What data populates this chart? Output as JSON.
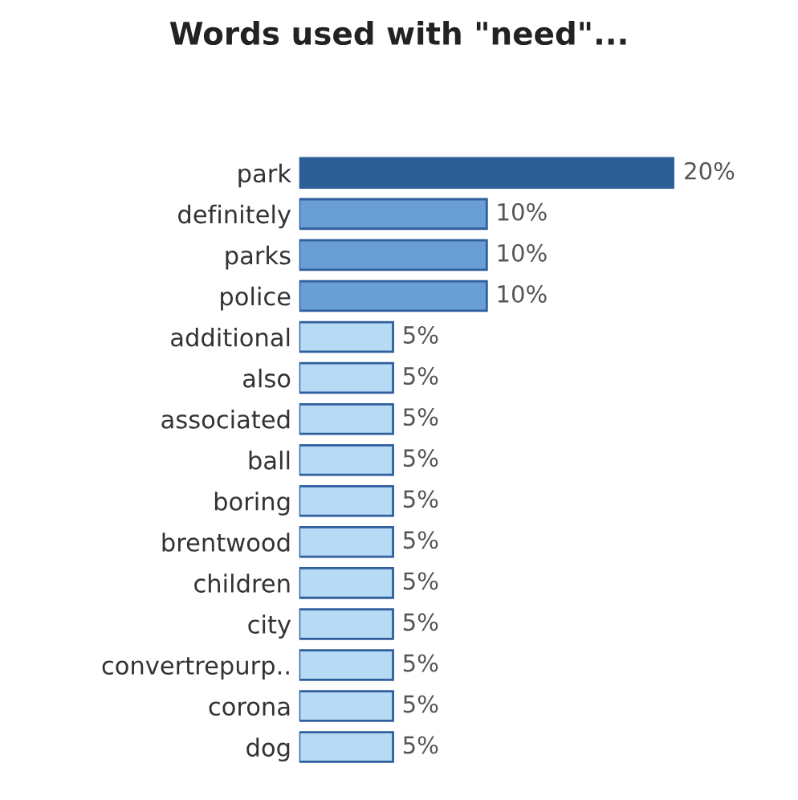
{
  "chart_data": {
    "type": "bar",
    "orientation": "horizontal",
    "title": "Words used with \"need\"...",
    "categories": [
      "park",
      "definitely",
      "parks",
      "police",
      "additional",
      "also",
      "associated",
      "ball",
      "boring",
      "brentwood",
      "children",
      "city",
      "convertrepurp..",
      "corona",
      "dog"
    ],
    "values": [
      20,
      10,
      10,
      10,
      5,
      5,
      5,
      5,
      5,
      5,
      5,
      5,
      5,
      5,
      5
    ],
    "value_labels": [
      "20%",
      "10%",
      "10%",
      "10%",
      "5%",
      "5%",
      "5%",
      "5%",
      "5%",
      "5%",
      "5%",
      "5%",
      "5%",
      "5%",
      "5%"
    ],
    "colors": [
      "#2c5d94",
      "#6a9fd6",
      "#6a9fd6",
      "#6a9fd6",
      "#b7dbf4",
      "#b7dbf4",
      "#b7dbf4",
      "#b7dbf4",
      "#b7dbf4",
      "#b7dbf4",
      "#b7dbf4",
      "#b7dbf4",
      "#b7dbf4",
      "#b7dbf4",
      "#b7dbf4"
    ],
    "xlim": [
      0,
      20
    ],
    "tick_labels": "y",
    "grid": false,
    "legend": false
  }
}
